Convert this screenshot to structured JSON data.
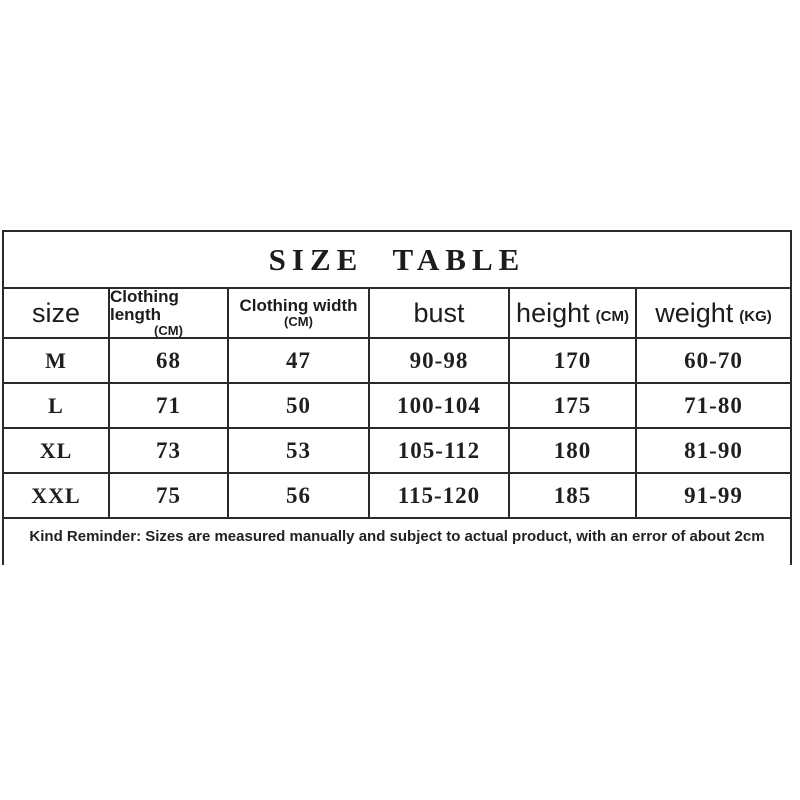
{
  "title": "SIZE TABLE",
  "table": {
    "headers": [
      {
        "label": "size",
        "unit": ""
      },
      {
        "label": "Clothing length",
        "unit": "(CM)"
      },
      {
        "label": "Clothing width",
        "unit": "(CM)"
      },
      {
        "label": "bust",
        "unit": ""
      },
      {
        "label": "height",
        "unit": "(CM)"
      },
      {
        "label": "weight",
        "unit": "(KG)"
      }
    ],
    "rows": [
      {
        "cells": [
          "M",
          "68",
          "47",
          "90-98",
          "170",
          "60-70"
        ]
      },
      {
        "cells": [
          "L",
          "71",
          "50",
          "100-104",
          "175",
          "71-80"
        ]
      },
      {
        "cells": [
          "XL",
          "73",
          "53",
          "105-112",
          "180",
          "81-90"
        ]
      },
      {
        "cells": [
          "XXL",
          "75",
          "56",
          "115-120",
          "185",
          "91-99"
        ]
      }
    ]
  },
  "note": "Kind Reminder: Sizes are measured manually and subject to actual product, with an error of about 2cm",
  "colors": {
    "background": "#ffffff",
    "border": "#2a2a2a",
    "text": "#1f1f1f"
  }
}
